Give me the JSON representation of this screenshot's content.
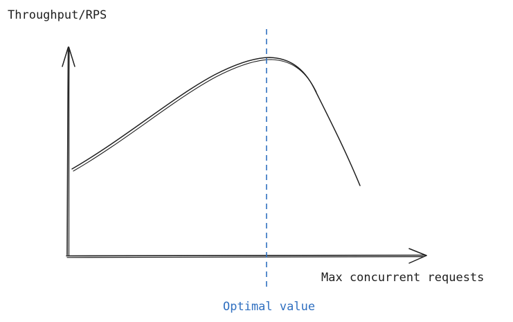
{
  "diagram": {
    "y_axis_label": "Throughput/RPS",
    "x_axis_label": "Max concurrent requests",
    "optimal_label": "Optimal value",
    "colors": {
      "ink": "#1e1e1e",
      "optimal": "#2f6fc0",
      "background": "#ffffff"
    }
  }
}
